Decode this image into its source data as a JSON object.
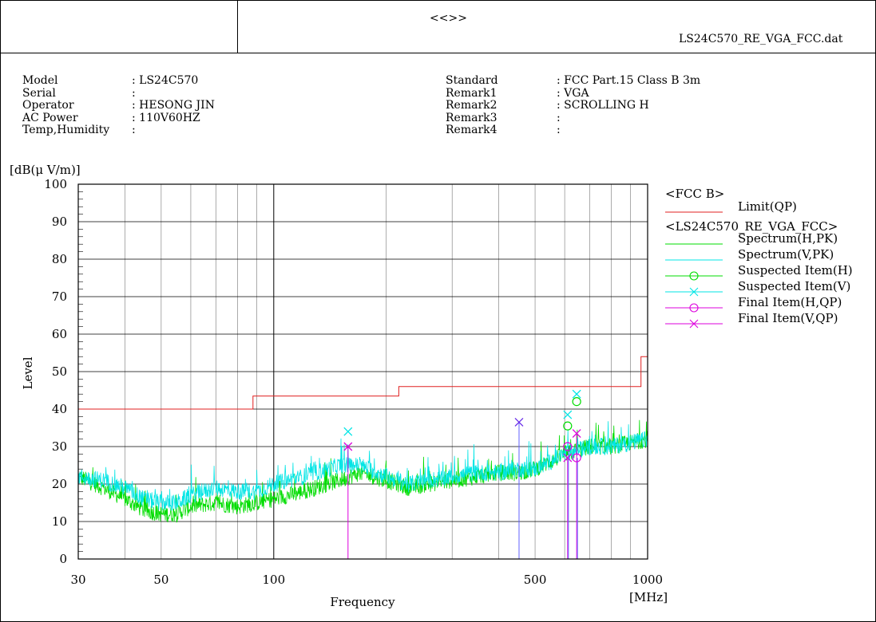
{
  "header": {
    "center_mark": "<<>>",
    "filename": "LS24C570_RE_VGA_FCC.dat"
  },
  "info": {
    "left": [
      {
        "label": "Model",
        "value": ": LS24C570"
      },
      {
        "label": "Serial",
        "value": ":"
      },
      {
        "label": "Operator",
        "value": ": HESONG JIN"
      },
      {
        "label": "AC Power",
        "value": ": 110V60HZ"
      },
      {
        "label": "Temp,Humidity",
        "value": ":"
      }
    ],
    "right": [
      {
        "label": "Standard",
        "value": ": FCC Part.15 Class B 3m"
      },
      {
        "label": "Remark1",
        "value": ": VGA"
      },
      {
        "label": "Remark2",
        "value": ": SCROLLING H"
      },
      {
        "label": "Remark3",
        "value": ":"
      },
      {
        "label": "Remark4",
        "value": ":"
      }
    ]
  },
  "legend": {
    "group1": "<FCC B>",
    "group2": "<LS24C570_RE_VGA_FCC>",
    "items": [
      {
        "key": "limit",
        "label": "Limit(QP)",
        "color": "#e02020",
        "marker": "none"
      },
      {
        "key": "spec_h",
        "label": "Spectrum(H,PK)",
        "color": "#00dd00",
        "marker": "none"
      },
      {
        "key": "spec_v",
        "label": "Spectrum(V,PK)",
        "color": "#00e5e5",
        "marker": "none"
      },
      {
        "key": "susp_h",
        "label": "Suspected Item(H)",
        "color": "#00dd00",
        "marker": "circle"
      },
      {
        "key": "susp_v",
        "label": "Suspected Item(V)",
        "color": "#00e5e5",
        "marker": "cross"
      },
      {
        "key": "final_h",
        "label": "Final Item(H,QP)",
        "color": "#dd00dd",
        "marker": "circle"
      },
      {
        "key": "final_v",
        "label": "Final Item(V,QP)",
        "color": "#dd00dd",
        "marker": "cross"
      }
    ]
  },
  "chart_data": {
    "type": "line",
    "title": "",
    "xlabel": "Frequency",
    "xunit": "[MHz]",
    "ylabel": "Level",
    "yunit": "[dB(μ V/m)]",
    "xscale": "log",
    "xlim": [
      30,
      1000
    ],
    "ylim": [
      0,
      100
    ],
    "xticks": [
      30,
      50,
      100,
      500,
      1000
    ],
    "yticks": [
      0,
      10,
      20,
      30,
      40,
      50,
      60,
      70,
      80,
      90,
      100
    ],
    "grid": true,
    "legend_position": "right",
    "limit_qp": {
      "x": [
        30,
        88,
        88,
        216,
        216,
        960,
        960,
        1000
      ],
      "y": [
        40,
        40,
        43.5,
        43.5,
        46,
        46,
        54,
        54
      ]
    },
    "spectrum_h_pk_envelope": {
      "x": [
        30,
        35,
        40,
        45,
        50,
        55,
        60,
        70,
        80,
        90,
        100,
        120,
        150,
        170,
        200,
        230,
        260,
        300,
        350,
        400,
        450,
        500,
        550,
        600,
        650,
        700,
        800,
        900,
        1000
      ],
      "y": [
        22,
        19,
        16,
        13,
        12,
        12,
        14,
        15,
        14,
        15,
        16,
        18,
        21,
        23,
        21,
        19,
        20,
        21,
        22,
        23,
        23,
        24,
        26,
        28,
        29,
        30,
        30,
        31,
        32
      ]
    },
    "spectrum_v_pk_envelope": {
      "x": [
        30,
        35,
        40,
        45,
        50,
        55,
        60,
        70,
        80,
        90,
        100,
        120,
        150,
        170,
        200,
        230,
        260,
        300,
        350,
        400,
        450,
        500,
        550,
        600,
        650,
        700,
        800,
        900,
        1000
      ],
      "y": [
        22,
        21,
        19,
        16,
        15,
        15,
        17,
        19,
        18,
        18,
        20,
        22,
        25,
        25,
        22,
        20,
        21,
        22,
        23,
        23,
        24,
        24,
        26,
        28,
        29,
        30,
        30,
        31,
        32
      ]
    },
    "suspected_h": [
      {
        "x": 611,
        "y": 35.5
      },
      {
        "x": 646,
        "y": 42
      }
    ],
    "suspected_v": [
      {
        "x": 158,
        "y": 34
      },
      {
        "x": 611,
        "y": 38.5
      },
      {
        "x": 646,
        "y": 44
      }
    ],
    "final_h_qp": [
      {
        "x": 611,
        "y": 30
      },
      {
        "x": 646,
        "y": 27
      }
    ],
    "final_v_qp": [
      {
        "x": 158,
        "y": 30
      },
      {
        "x": 453,
        "y": 36.5
      },
      {
        "x": 611,
        "y": 27
      },
      {
        "x": 646,
        "y": 33.5
      }
    ]
  }
}
